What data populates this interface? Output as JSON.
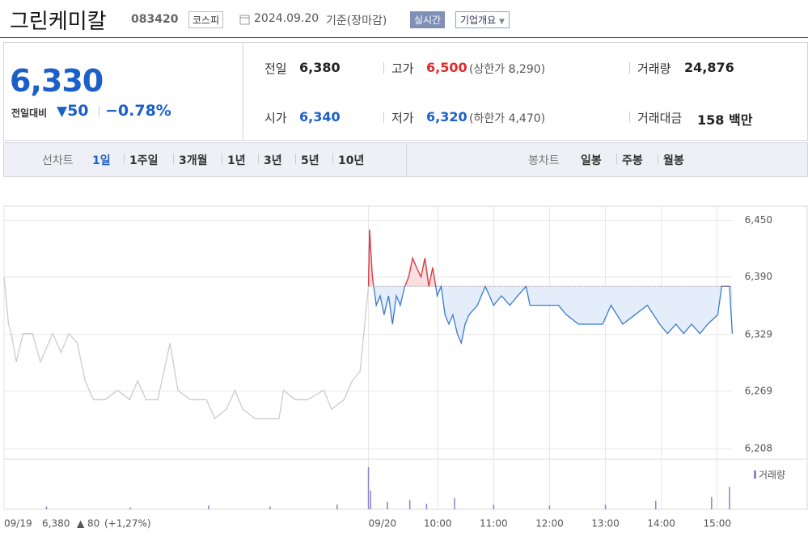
{
  "header": {
    "title": "그린케미칼",
    "code": "083420",
    "market": "코스피",
    "date": "2024.09.20",
    "basis": "기준(장마감)",
    "realtime": "실시간",
    "company": "기업개요"
  },
  "summary": {
    "price": "6,330",
    "change_label": "전일대비",
    "change": "50",
    "rate": "−0.78%",
    "items": [
      {
        "label": "전일",
        "value": "6,380"
      },
      {
        "label": "고가",
        "value": "6,500",
        "sub_label": "상한가",
        "sub_value": "8,290"
      },
      {
        "label": "거래량",
        "value": "24,876"
      },
      {
        "label": "시가",
        "value": "6,340"
      },
      {
        "label": "저가",
        "value": "6,320",
        "sub_label": "하한가",
        "sub_value": "4,470"
      },
      {
        "label": "거래대금",
        "value": "158",
        "unit": "백만"
      }
    ]
  },
  "tabs": {
    "line_label": "선차트",
    "line": [
      "1일",
      "1주일",
      "3개월",
      "1년",
      "3년",
      "5년",
      "10년"
    ],
    "candle_label": "봉차트",
    "candle": [
      "일봉",
      "주봉",
      "월봉"
    ]
  },
  "chart_data": {
    "type": "line",
    "xlim": [
      2.24,
      16.61
    ],
    "ylim": [
      6197,
      6465
    ],
    "xticks": [
      {
        "value": 2.24,
        "label": "09/19"
      },
      {
        "value": 8.76,
        "label": "09/20"
      },
      {
        "value": 10,
        "label": "10:00"
      },
      {
        "value": 11,
        "label": "11:00"
      },
      {
        "value": 12,
        "label": "12:00"
      },
      {
        "value": 13,
        "label": "13:00"
      },
      {
        "value": 14,
        "label": "14:00"
      },
      {
        "value": 15,
        "label": "15:00"
      }
    ],
    "yticks": [
      {
        "value": 6450,
        "label": "6,450"
      },
      {
        "value": 6390,
        "label": "6,390"
      },
      {
        "value": 6329,
        "label": "6,329"
      },
      {
        "value": 6269,
        "label": "6,269"
      },
      {
        "value": 6208,
        "label": "6,208"
      }
    ],
    "reference_line": 6380,
    "series": [
      {
        "color": "#cccccc",
        "x": [
          2.24,
          2.32,
          2.37,
          2.46,
          2.58,
          2.75,
          2.89,
          3.11,
          3.26,
          3.4,
          3.55,
          3.69,
          3.84,
          4.05,
          4.27,
          4.49,
          4.63,
          4.78,
          4.99,
          5.21,
          5.35,
          5.57,
          5.86,
          6.01,
          6.22,
          6.37,
          6.51,
          6.73,
          7.16,
          7.24,
          7.45,
          7.67,
          7.96,
          8.1,
          8.32,
          8.47,
          8.61,
          8.71,
          8.76
        ],
        "values": [
          6390,
          6340,
          6330,
          6300,
          6330,
          6330,
          6300,
          6330,
          6310,
          6330,
          6320,
          6280,
          6260,
          6260,
          6270,
          6260,
          6280,
          6260,
          6260,
          6320,
          6270,
          6260,
          6260,
          6240,
          6250,
          6270,
          6250,
          6240,
          6240,
          6270,
          6260,
          6260,
          6270,
          6250,
          6260,
          6280,
          6290,
          6350,
          6380
        ]
      },
      {
        "color": "#3a78d0",
        "above_color": "#ee3a3a",
        "x": [
          8.76,
          8.78,
          8.83,
          8.9,
          8.97,
          9.04,
          9.12,
          9.19,
          9.26,
          9.33,
          9.41,
          9.48,
          9.55,
          9.62,
          9.7,
          9.77,
          9.84,
          9.91,
          9.99,
          10.06,
          10.13,
          10.2,
          10.27,
          10.35,
          10.42,
          10.49,
          10.56,
          10.71,
          10.85,
          11.0,
          11.14,
          11.29,
          11.43,
          11.58,
          11.65,
          12.16,
          12.3,
          12.52,
          12.95,
          13.1,
          13.31,
          13.53,
          13.75,
          13.97,
          14.11,
          14.26,
          14.4,
          14.54,
          14.69,
          14.83,
          15.01,
          15.08,
          15.22,
          15.27
        ],
        "values": [
          6380,
          6440,
          6390,
          6360,
          6370,
          6350,
          6370,
          6340,
          6370,
          6360,
          6380,
          6390,
          6410,
          6400,
          6390,
          6410,
          6380,
          6400,
          6370,
          6380,
          6350,
          6340,
          6350,
          6330,
          6320,
          6340,
          6350,
          6360,
          6380,
          6360,
          6370,
          6360,
          6370,
          6380,
          6360,
          6360,
          6350,
          6340,
          6340,
          6360,
          6340,
          6350,
          6360,
          6340,
          6330,
          6340,
          6330,
          6340,
          6330,
          6340,
          6350,
          6380,
          6380,
          6330
        ]
      }
    ],
    "volume": {
      "label": "거래량",
      "color": "#8c80c8",
      "ylim": [
        0,
        5000
      ],
      "x": [
        3.0,
        4.5,
        5.9,
        7.0,
        8.2,
        8.76,
        8.8,
        9.1,
        9.5,
        9.8,
        10.3,
        11.0,
        12.0,
        13.0,
        13.9,
        14.9,
        15.22
      ],
      "values": [
        300,
        200,
        400,
        300,
        500,
        4500,
        2000,
        800,
        1000,
        600,
        1200,
        500,
        400,
        500,
        900,
        1300,
        2400
      ]
    },
    "prev_day": {
      "close": "6,380",
      "change": "80",
      "rate": "(+1,27%)"
    }
  }
}
